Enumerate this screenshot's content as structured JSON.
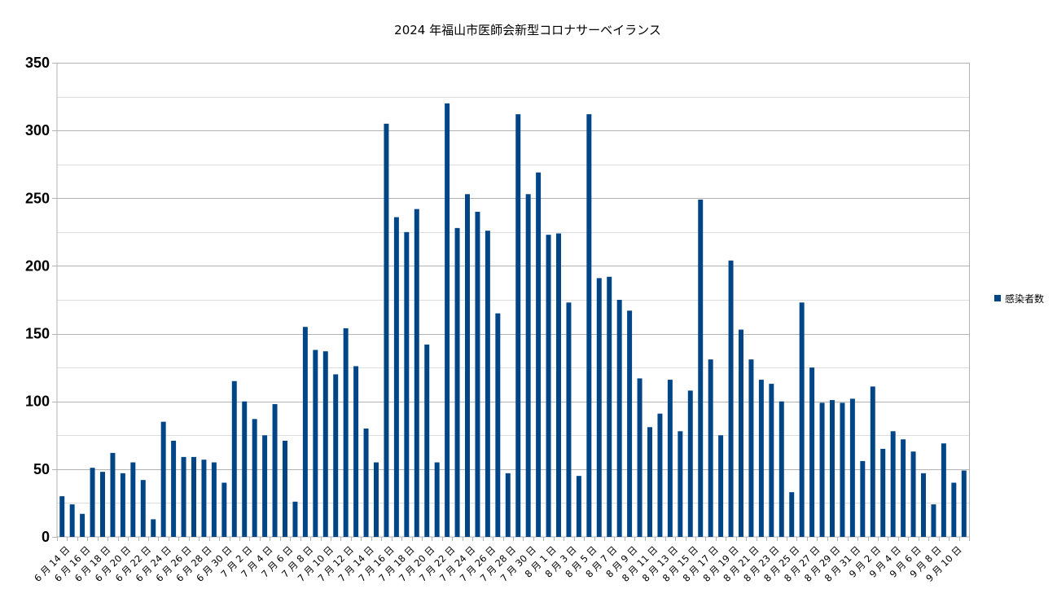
{
  "chart_data": {
    "type": "bar",
    "title": "2024 年福山市医師会新型コロナサーベイランス",
    "xlabel": "",
    "ylabel": "",
    "ylim": [
      0,
      350
    ],
    "y_ticks": [
      0,
      50,
      100,
      150,
      200,
      250,
      300,
      350
    ],
    "y_tick_labels": [
      "0",
      "50",
      "100",
      "150",
      "200",
      "250",
      "300",
      "350"
    ],
    "grid": true,
    "legend_position": "right",
    "categories": [
      "6 月 14 日",
      "6 月 15 日",
      "6 月 16 日",
      "6 月 17 日",
      "6 月 18 日",
      "6 月 19 日",
      "6 月 20 日",
      "6 月 21 日",
      "6 月 22 日",
      "6 月 23 日",
      "6 月 24 日",
      "6 月 25 日",
      "6 月 26 日",
      "6 月 27 日",
      "6 月 28 日",
      "6 月 29 日",
      "6 月 30 日",
      "7 月 1 日",
      "7 月 2 日",
      "7 月 3 日",
      "7 月 4 日",
      "7 月 5 日",
      "7 月 6 日",
      "7 月 7 日",
      "7 月 8 日",
      "7 月 9 日",
      "7 月 10 日",
      "7 月 11 日",
      "7 月 12 日",
      "7 月 13 日",
      "7 月 14 日",
      "7 月 15 日",
      "7 月 16 日",
      "7 月 17 日",
      "7 月 18 日",
      "7 月 19 日",
      "7 月 20 日",
      "7 月 21 日",
      "7 月 22 日",
      "7 月 23 日",
      "7 月 24 日",
      "7 月 25 日",
      "7 月 26 日",
      "7 月 27 日",
      "7 月 28 日",
      "7 月 29 日",
      "7 月 30 日",
      "7 月 31 日",
      "8 月 1 日",
      "8 月 2 日",
      "8 月 3 日",
      "8 月 4 日",
      "8 月 5 日",
      "8 月 6 日",
      "8 月 7 日",
      "8 月 8 日",
      "8 月 9 日",
      "8 月 10 日",
      "8 月 11 日",
      "8 月 12 日",
      "8 月 13 日",
      "8 月 14 日",
      "8 月 15 日",
      "8 月 16 日",
      "8 月 17 日",
      "8 月 18 日",
      "8 月 19 日",
      "8 月 20 日",
      "8 月 21 日",
      "8 月 22 日",
      "8 月 23 日",
      "8 月 24 日",
      "8 月 25 日",
      "8 月 26 日",
      "8 月 27 日",
      "8 月 28 日",
      "8 月 29 日",
      "8 月 30 日",
      "8 月 31 日",
      "9 月 1 日",
      "9 月 2 日",
      "9 月 3 日",
      "9 月 4 日",
      "9 月 5 日",
      "9 月 6 日",
      "9 月 7 日",
      "9 月 8 日",
      "9 月 9 日",
      "9 月 10 日",
      "9 月 11 日"
    ],
    "visible_tick_labels": [
      "6 月 14 日",
      "6 月 16 日",
      "6 月 18 日",
      "6 月 20 日",
      "6 月 22 日",
      "6 月 24 日",
      "6 月 26 日",
      "6 月 28 日",
      "6 月 30 日",
      "7 月 2 日",
      "7 月 4 日",
      "7 月 6 日",
      "7 月 8 日",
      "7 月 10 日",
      "7 月 12 日",
      "7 月 14 日",
      "7 月 16 日",
      "7 月 18 日",
      "7 月 20 日",
      "7 月 22 日",
      "7 月 24 日",
      "7 月 26 日",
      "7 月 28 日",
      "7 月 30 日",
      "8 月 1 日",
      "8 月 3 日",
      "8 月 5 日",
      "8 月 7 日",
      "8 月 9 日",
      "8 月 11 日",
      "8 月 13 日",
      "8 月 15 日",
      "8 月 17 日",
      "8 月 19 日",
      "8 月 21 日",
      "8 月 23 日",
      "8 月 25 日",
      "8 月 27 日",
      "8 月 29 日",
      "8 月 31 日",
      "9 月 2 日",
      "9 月 4 日",
      "9 月 6 日",
      "9 月 8 日",
      "9 月 10 日"
    ],
    "series": [
      {
        "name": "感染者数",
        "color": "#004586",
        "values": [
          30,
          24,
          17,
          51,
          48,
          62,
          47,
          55,
          42,
          13,
          85,
          71,
          59,
          59,
          57,
          55,
          40,
          115,
          100,
          87,
          75,
          98,
          71,
          26,
          155,
          138,
          137,
          120,
          154,
          126,
          80,
          55,
          305,
          236,
          225,
          242,
          142,
          55,
          320,
          228,
          253,
          240,
          226,
          165,
          47,
          312,
          253,
          269,
          223,
          224,
          173,
          45,
          312,
          191,
          192,
          175,
          167,
          117,
          81,
          91,
          116,
          78,
          108,
          249,
          131,
          75,
          204,
          153,
          131,
          116,
          113,
          100,
          33,
          173,
          125,
          99,
          101,
          99,
          102,
          56,
          111,
          65,
          78,
          72,
          63,
          47,
          24,
          69,
          40,
          49
        ]
      }
    ],
    "colors": {
      "bar": "#004586",
      "major_grid": "#b3b3b3",
      "minor_grid": "#dddddd"
    }
  }
}
